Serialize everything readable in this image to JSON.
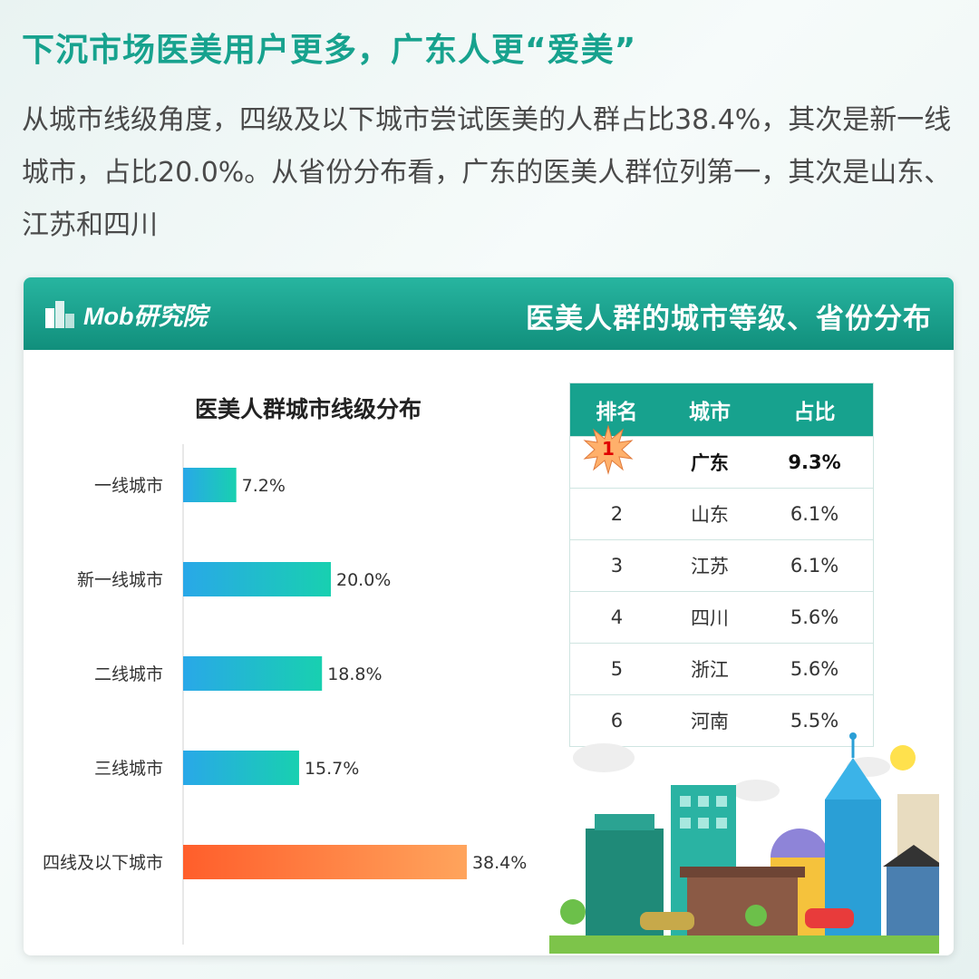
{
  "headline": "下沉市场医美用户更多，广东人更“爱美”",
  "intro": "从城市线级角度，四级及以下城市尝试医美的人群占比38.4%，其次是新一线城市，占比20.0%。从省份分布看，广东的医美人群位列第一，其次是山东、江苏和四川",
  "banner": {
    "logo_text": "Mob研究院",
    "title": "医美人群的城市等级、省份分布"
  },
  "colors": {
    "accent": "#17a28e",
    "bar_start": "#29a8e8",
    "bar_end": "#18d0b0",
    "highlight_start": "#ff5e2b",
    "highlight_end": "#ffa45c"
  },
  "chart_data": {
    "type": "bar",
    "orientation": "horizontal",
    "title": "医美人群城市线级分布",
    "categories": [
      "一线城市",
      "新一线城市",
      "二线城市",
      "三线城市",
      "四线及以下城市"
    ],
    "values": [
      7.2,
      20.0,
      18.8,
      15.7,
      38.4
    ],
    "value_labels": [
      "7.2%",
      "20.0%",
      "18.8%",
      "15.7%",
      "38.4%"
    ],
    "highlight_index": 4,
    "xlim": [
      0,
      40
    ],
    "grid": false,
    "legend": "none"
  },
  "ranking_table": {
    "headers": [
      "排名",
      "城市",
      "占比"
    ],
    "rows": [
      {
        "rank": "1",
        "city": "广东",
        "share": "9.3%"
      },
      {
        "rank": "2",
        "city": "山东",
        "share": "6.1%"
      },
      {
        "rank": "3",
        "city": "江苏",
        "share": "6.1%"
      },
      {
        "rank": "4",
        "city": "四川",
        "share": "5.6%"
      },
      {
        "rank": "5",
        "city": "浙江",
        "share": "5.6%"
      },
      {
        "rank": "6",
        "city": "河南",
        "share": "5.5%"
      }
    ]
  }
}
